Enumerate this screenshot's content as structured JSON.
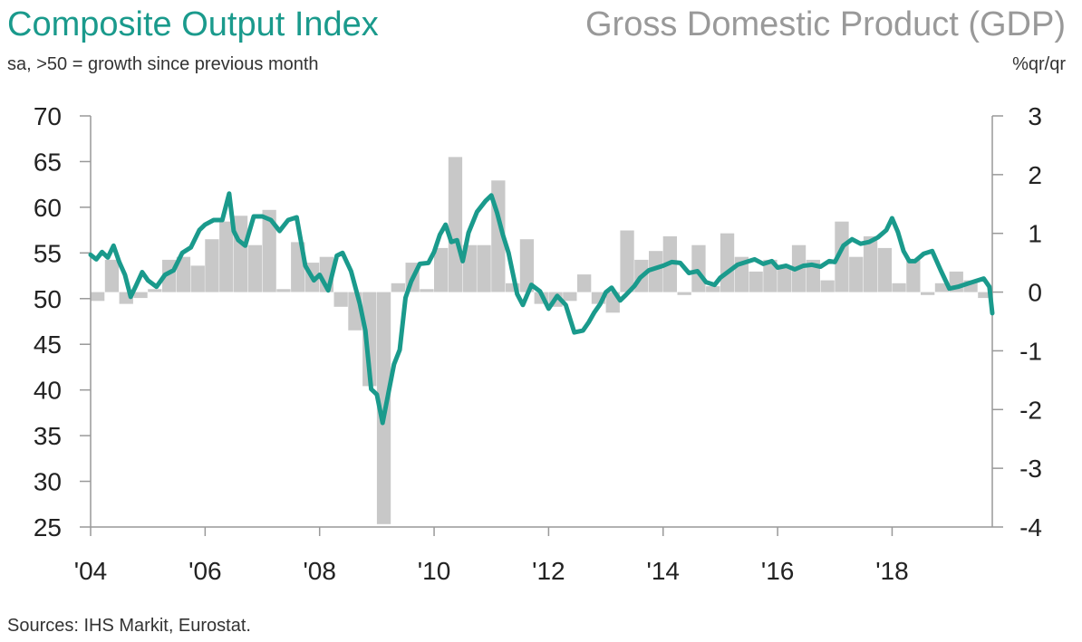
{
  "header": {
    "title_left": "Composite Output Index",
    "subtitle_left": "sa, >50 = growth since previous month",
    "title_right": "Gross Domestic Product (GDP)",
    "subtitle_right": "%qr/qr"
  },
  "footer": {
    "source": "Sources: IHS Markit, Eurostat."
  },
  "colors": {
    "line": "#1a9a8c",
    "bars": "#c8c8c8",
    "axis": "#999999",
    "title_left": "#1a9a8c",
    "title_right": "#999999"
  },
  "chart_data": {
    "type": "bar+line",
    "grid": false,
    "legend": "none",
    "x_tick_labels": [
      "'04",
      "'06",
      "'08",
      "'10",
      "'12",
      "'14",
      "'16",
      "'18"
    ],
    "x_tick_years": [
      2004,
      2006,
      2008,
      2010,
      2012,
      2014,
      2016,
      2018
    ],
    "x_range": [
      2004.0,
      2019.75
    ],
    "left_axis": {
      "ticks": [
        70,
        65,
        60,
        55,
        50,
        45,
        40,
        35,
        30,
        25
      ],
      "range": [
        25,
        70
      ]
    },
    "right_axis": {
      "ticks": [
        "3",
        "2",
        "1",
        "0",
        "-1",
        "-2",
        "-3",
        "-4"
      ],
      "range": [
        -4,
        3
      ]
    },
    "series": [
      {
        "kind": "bars",
        "axis": "right",
        "x": [
          2004.0,
          2004.25,
          2004.5,
          2004.75,
          2005.0,
          2005.25,
          2005.5,
          2005.75,
          2006.0,
          2006.25,
          2006.5,
          2006.75,
          2007.0,
          2007.25,
          2007.5,
          2007.75,
          2008.0,
          2008.25,
          2008.5,
          2008.75,
          2009.0,
          2009.25,
          2009.5,
          2009.75,
          2010.0,
          2010.25,
          2010.5,
          2010.75,
          2011.0,
          2011.25,
          2011.5,
          2011.75,
          2012.0,
          2012.25,
          2012.5,
          2012.75,
          2013.0,
          2013.25,
          2013.5,
          2013.75,
          2014.0,
          2014.25,
          2014.5,
          2014.75,
          2015.0,
          2015.25,
          2015.5,
          2015.75,
          2016.0,
          2016.25,
          2016.5,
          2016.75,
          2017.0,
          2017.25,
          2017.5,
          2017.75,
          2018.0,
          2018.25,
          2018.5,
          2018.75,
          2019.0,
          2019.25,
          2019.5
        ],
        "values": [
          -0.15,
          0.55,
          -0.2,
          -0.1,
          0.05,
          0.55,
          0.6,
          0.45,
          0.9,
          1.2,
          1.3,
          0.8,
          1.4,
          0.05,
          0.85,
          0.5,
          0.6,
          -0.25,
          -0.65,
          -1.6,
          -3.95,
          0.15,
          0.5,
          0.05,
          0.75,
          2.3,
          0.8,
          0.8,
          1.9,
          0.15,
          0.9,
          -0.2,
          -0.25,
          -0.15,
          0.3,
          -0.2,
          -0.35,
          1.05,
          0.55,
          0.7,
          0.95,
          -0.05,
          0.8,
          0.1,
          1.0,
          0.6,
          0.35,
          0.55,
          0.45,
          0.8,
          0.55,
          0.2,
          1.2,
          0.6,
          0.95,
          0.75,
          0.15,
          0.55,
          -0.05,
          0.15,
          0.35,
          0.2,
          -0.1
        ]
      },
      {
        "kind": "line",
        "axis": "left",
        "x": [
          2004.0,
          2004.1,
          2004.2,
          2004.3,
          2004.4,
          2004.5,
          2004.6,
          2004.7,
          2004.8,
          2004.9,
          2005.0,
          2005.15,
          2005.3,
          2005.45,
          2005.6,
          2005.75,
          2005.9,
          2006.0,
          2006.15,
          2006.3,
          2006.42,
          2006.5,
          2006.58,
          2006.7,
          2006.85,
          2007.0,
          2007.15,
          2007.3,
          2007.45,
          2007.6,
          2007.75,
          2007.9,
          2008.0,
          2008.15,
          2008.3,
          2008.4,
          2008.55,
          2008.7,
          2008.8,
          2008.9,
          2009.0,
          2009.1,
          2009.2,
          2009.3,
          2009.4,
          2009.5,
          2009.6,
          2009.75,
          2009.9,
          2010.0,
          2010.1,
          2010.2,
          2010.3,
          2010.4,
          2010.5,
          2010.6,
          2010.75,
          2010.9,
          2011.0,
          2011.1,
          2011.2,
          2011.3,
          2011.45,
          2011.55,
          2011.7,
          2011.85,
          2012.0,
          2012.15,
          2012.3,
          2012.45,
          2012.6,
          2012.7,
          2012.8,
          2012.9,
          2013.0,
          2013.1,
          2013.25,
          2013.35,
          2013.5,
          2013.6,
          2013.75,
          2013.9,
          2014.0,
          2014.15,
          2014.3,
          2014.45,
          2014.6,
          2014.75,
          2014.9,
          2015.0,
          2015.15,
          2015.3,
          2015.45,
          2015.6,
          2015.75,
          2015.9,
          2016.0,
          2016.15,
          2016.3,
          2016.45,
          2016.6,
          2016.75,
          2016.9,
          2017.0,
          2017.15,
          2017.3,
          2017.45,
          2017.6,
          2017.75,
          2017.9,
          2018.0,
          2018.1,
          2018.2,
          2018.3,
          2018.4,
          2018.55,
          2018.7,
          2018.85,
          2019.0,
          2019.15,
          2019.3,
          2019.45,
          2019.6,
          2019.7,
          2019.75
        ],
        "values": [
          54.8,
          54.3,
          55.1,
          54.5,
          55.8,
          54.0,
          52.6,
          50.2,
          51.5,
          52.9,
          52.0,
          51.3,
          52.6,
          53.1,
          55.0,
          55.6,
          57.5,
          58.1,
          58.6,
          58.6,
          61.5,
          57.4,
          56.4,
          55.8,
          59.0,
          59.0,
          58.6,
          57.4,
          58.6,
          58.9,
          53.6,
          52.0,
          52.6,
          50.9,
          54.7,
          55.0,
          53.0,
          49.5,
          46.5,
          40.1,
          39.5,
          36.4,
          39.6,
          42.8,
          44.4,
          50.1,
          51.9,
          53.8,
          53.9,
          55.1,
          57.0,
          58.1,
          56.2,
          56.4,
          54.1,
          57.2,
          59.5,
          60.7,
          61.3,
          59.4,
          57.0,
          55.0,
          50.5,
          49.3,
          51.5,
          50.8,
          48.9,
          50.3,
          49.3,
          46.3,
          46.5,
          47.4,
          48.5,
          49.4,
          50.7,
          51.2,
          49.8,
          50.4,
          51.4,
          52.3,
          53.1,
          53.4,
          53.6,
          54.0,
          53.9,
          52.8,
          53.0,
          51.8,
          51.5,
          52.3,
          53.0,
          53.7,
          54.0,
          54.3,
          53.8,
          54.1,
          53.4,
          53.6,
          53.2,
          53.6,
          53.7,
          53.5,
          54.1,
          54.0,
          55.8,
          56.5,
          56.0,
          56.2,
          56.7,
          57.5,
          58.8,
          57.3,
          55.2,
          54.1,
          54.1,
          54.9,
          55.2,
          53.1,
          51.1,
          51.3,
          51.6,
          51.9,
          52.2,
          51.3,
          48.4
        ]
      }
    ]
  }
}
